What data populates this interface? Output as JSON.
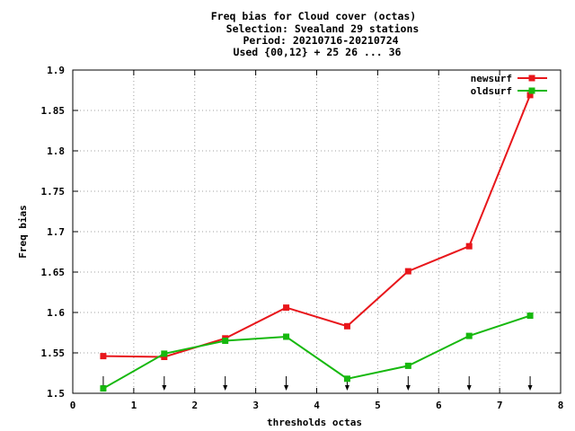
{
  "chart_data": {
    "type": "line",
    "title_lines": [
      "Freq bias  for Cloud cover (octas)",
      "Selection: Svealand     29 stations",
      "Period: 20210716-20210724",
      "Used {00,12} + 25 26 ... 36"
    ],
    "xlabel": "thresholds octas",
    "ylabel": "Freq bias",
    "xlim": [
      0,
      8
    ],
    "ylim": [
      1.5,
      1.9
    ],
    "x_ticks": [
      0,
      1,
      2,
      3,
      4,
      5,
      6,
      7,
      8
    ],
    "y_ticks": [
      1.5,
      1.55,
      1.6,
      1.65,
      1.7,
      1.75,
      1.8,
      1.85,
      1.9
    ],
    "x_tick_labels": [
      "0",
      "1",
      "2",
      "3",
      "4",
      "5",
      "6",
      "7",
      "8"
    ],
    "y_tick_labels": [
      "1.5",
      "1.55",
      "1.6",
      "1.65",
      "1.7",
      "1.75",
      "1.8",
      "1.85",
      "1.9"
    ],
    "grid": true,
    "legend_position": "top-right",
    "arrow_markers_x": [
      0.5,
      1.5,
      2.5,
      3.5,
      4.5,
      5.5,
      6.5,
      7.5
    ],
    "x": [
      0.5,
      1.5,
      2.5,
      3.5,
      4.5,
      5.5,
      6.5,
      7.5
    ],
    "series": [
      {
        "name": "newsurf",
        "color": "#e8161b",
        "values": [
          1.546,
          1.545,
          1.568,
          1.606,
          1.583,
          1.651,
          1.682,
          1.869
        ]
      },
      {
        "name": "oldsurf",
        "color": "#16b80e",
        "values": [
          1.506,
          1.549,
          1.565,
          1.57,
          1.518,
          1.534,
          1.571,
          1.596
        ]
      }
    ]
  }
}
